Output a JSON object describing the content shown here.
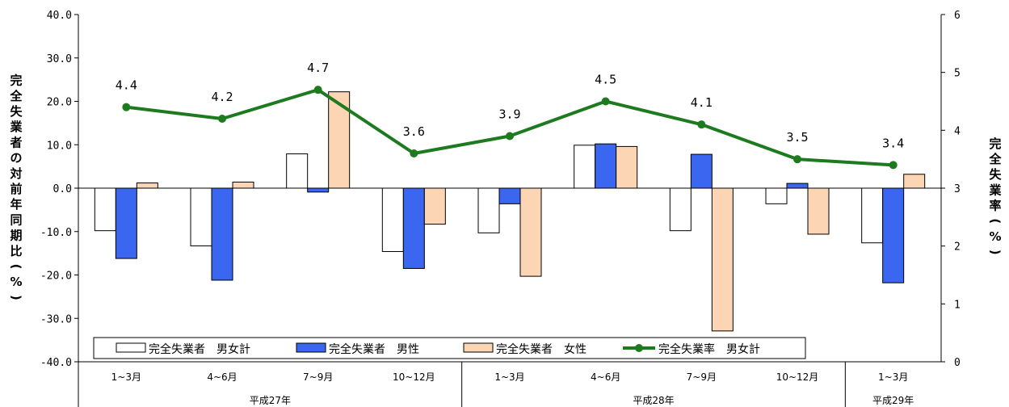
{
  "chart_data": {
    "type": "bar",
    "title": "",
    "categories": [
      "1~3月",
      "4~6月",
      "7~9月",
      "10~12月",
      "1~3月",
      "4~6月",
      "7~9月",
      "10~12月",
      "1~3月"
    ],
    "groups": [
      {
        "label": "平成27年",
        "count": 4
      },
      {
        "label": "平成28年",
        "count": 4
      },
      {
        "label": "平成29年",
        "count": 1
      }
    ],
    "series": [
      {
        "name": "完全失業者　男女計",
        "type": "bar",
        "axis": "left",
        "color": "#ffffff",
        "values": [
          -9.8,
          -13.3,
          7.9,
          -14.6,
          -10.3,
          9.9,
          -9.8,
          -3.6,
          -12.6
        ]
      },
      {
        "name": "完全失業者　男性",
        "type": "bar",
        "axis": "left",
        "color": "#3a66f0",
        "values": [
          -16.2,
          -21.2,
          -0.9,
          -18.5,
          -3.6,
          10.2,
          7.8,
          1.1,
          -21.8
        ]
      },
      {
        "name": "完全失業者　女性",
        "type": "bar",
        "axis": "left",
        "color": "#fcd5b5",
        "values": [
          1.2,
          1.4,
          22.2,
          -8.3,
          -20.3,
          9.6,
          -32.9,
          -10.6,
          3.2
        ]
      },
      {
        "name": "完全失業率　男女計",
        "type": "line",
        "axis": "right",
        "color": "#1e7a1e",
        "values": [
          4.4,
          4.2,
          4.7,
          3.6,
          3.9,
          4.5,
          4.1,
          3.5,
          3.4
        ],
        "labels": [
          "4.4",
          "4.2",
          "4.7",
          "3.6",
          "3.9",
          "4.5",
          "4.1",
          "3.5",
          "3.4"
        ]
      }
    ],
    "y_left": {
      "label": "完全失業者の対前年同期比(%)",
      "min": -40,
      "max": 40,
      "ticks": [
        40,
        30,
        20,
        10,
        0,
        -10,
        -20,
        -30,
        -40
      ],
      "tick_labels": [
        "40.0",
        "30.0",
        "20.0",
        "10.0",
        "0.0",
        "-10.0",
        "-20.0",
        "-30.0",
        "-40.0"
      ]
    },
    "y_right": {
      "label": "完全失業率(%)",
      "min": 0,
      "max": 6,
      "ticks": [
        6,
        5,
        4,
        3,
        2,
        1,
        0
      ],
      "tick_labels": [
        "6",
        "5",
        "4",
        "3",
        "2",
        "1",
        "0"
      ]
    },
    "legend_position": "bottom-inside",
    "grid": false
  }
}
